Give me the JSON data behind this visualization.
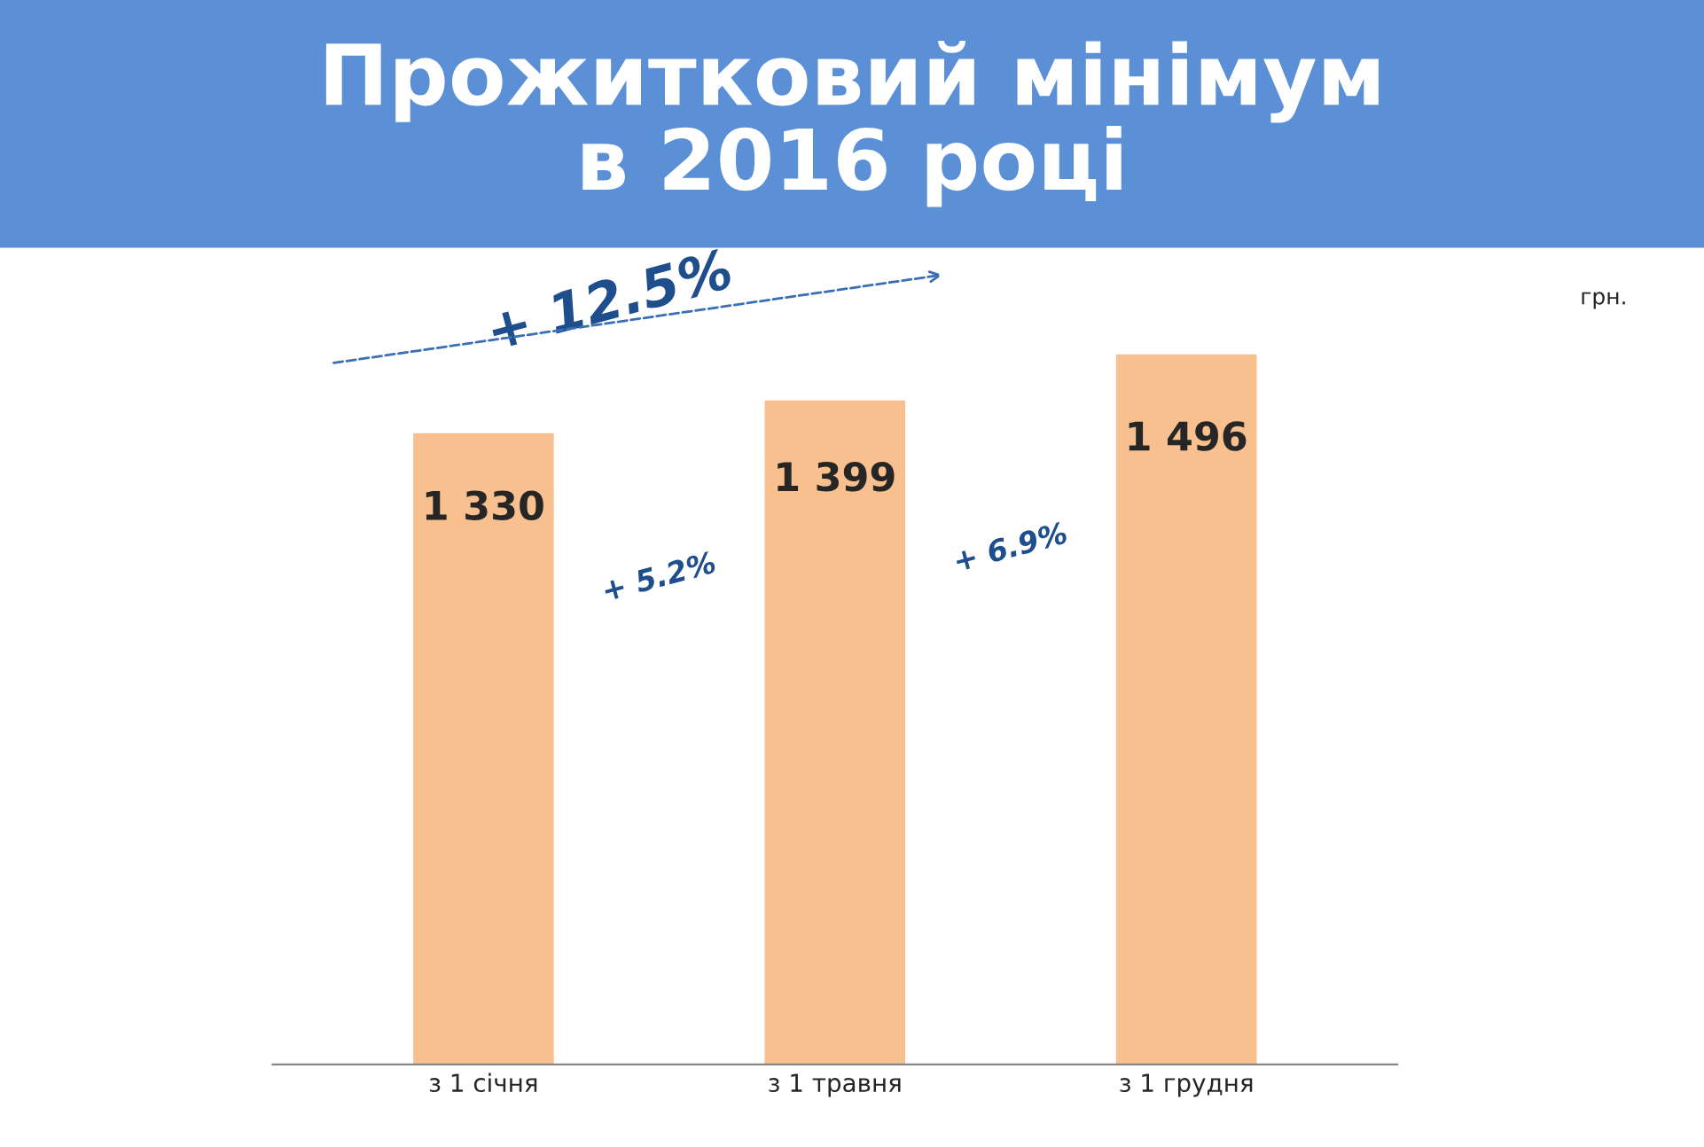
{
  "chart_data": {
    "type": "bar",
    "title": "Прожитковий мінімум\nв 2016 році",
    "categories": [
      "з 1 січня",
      "з 1 травня",
      "з 1 грудня"
    ],
    "values": [
      1330,
      1399,
      1496
    ],
    "value_labels": [
      "1 330",
      "1 399",
      "1 496"
    ],
    "color": "#f9c08f",
    "tick_labels": "x",
    "annotations": [
      "грн.",
      "+ 12.5%",
      "+ 5.2%",
      "+ 6.9%"
    ]
  }
}
